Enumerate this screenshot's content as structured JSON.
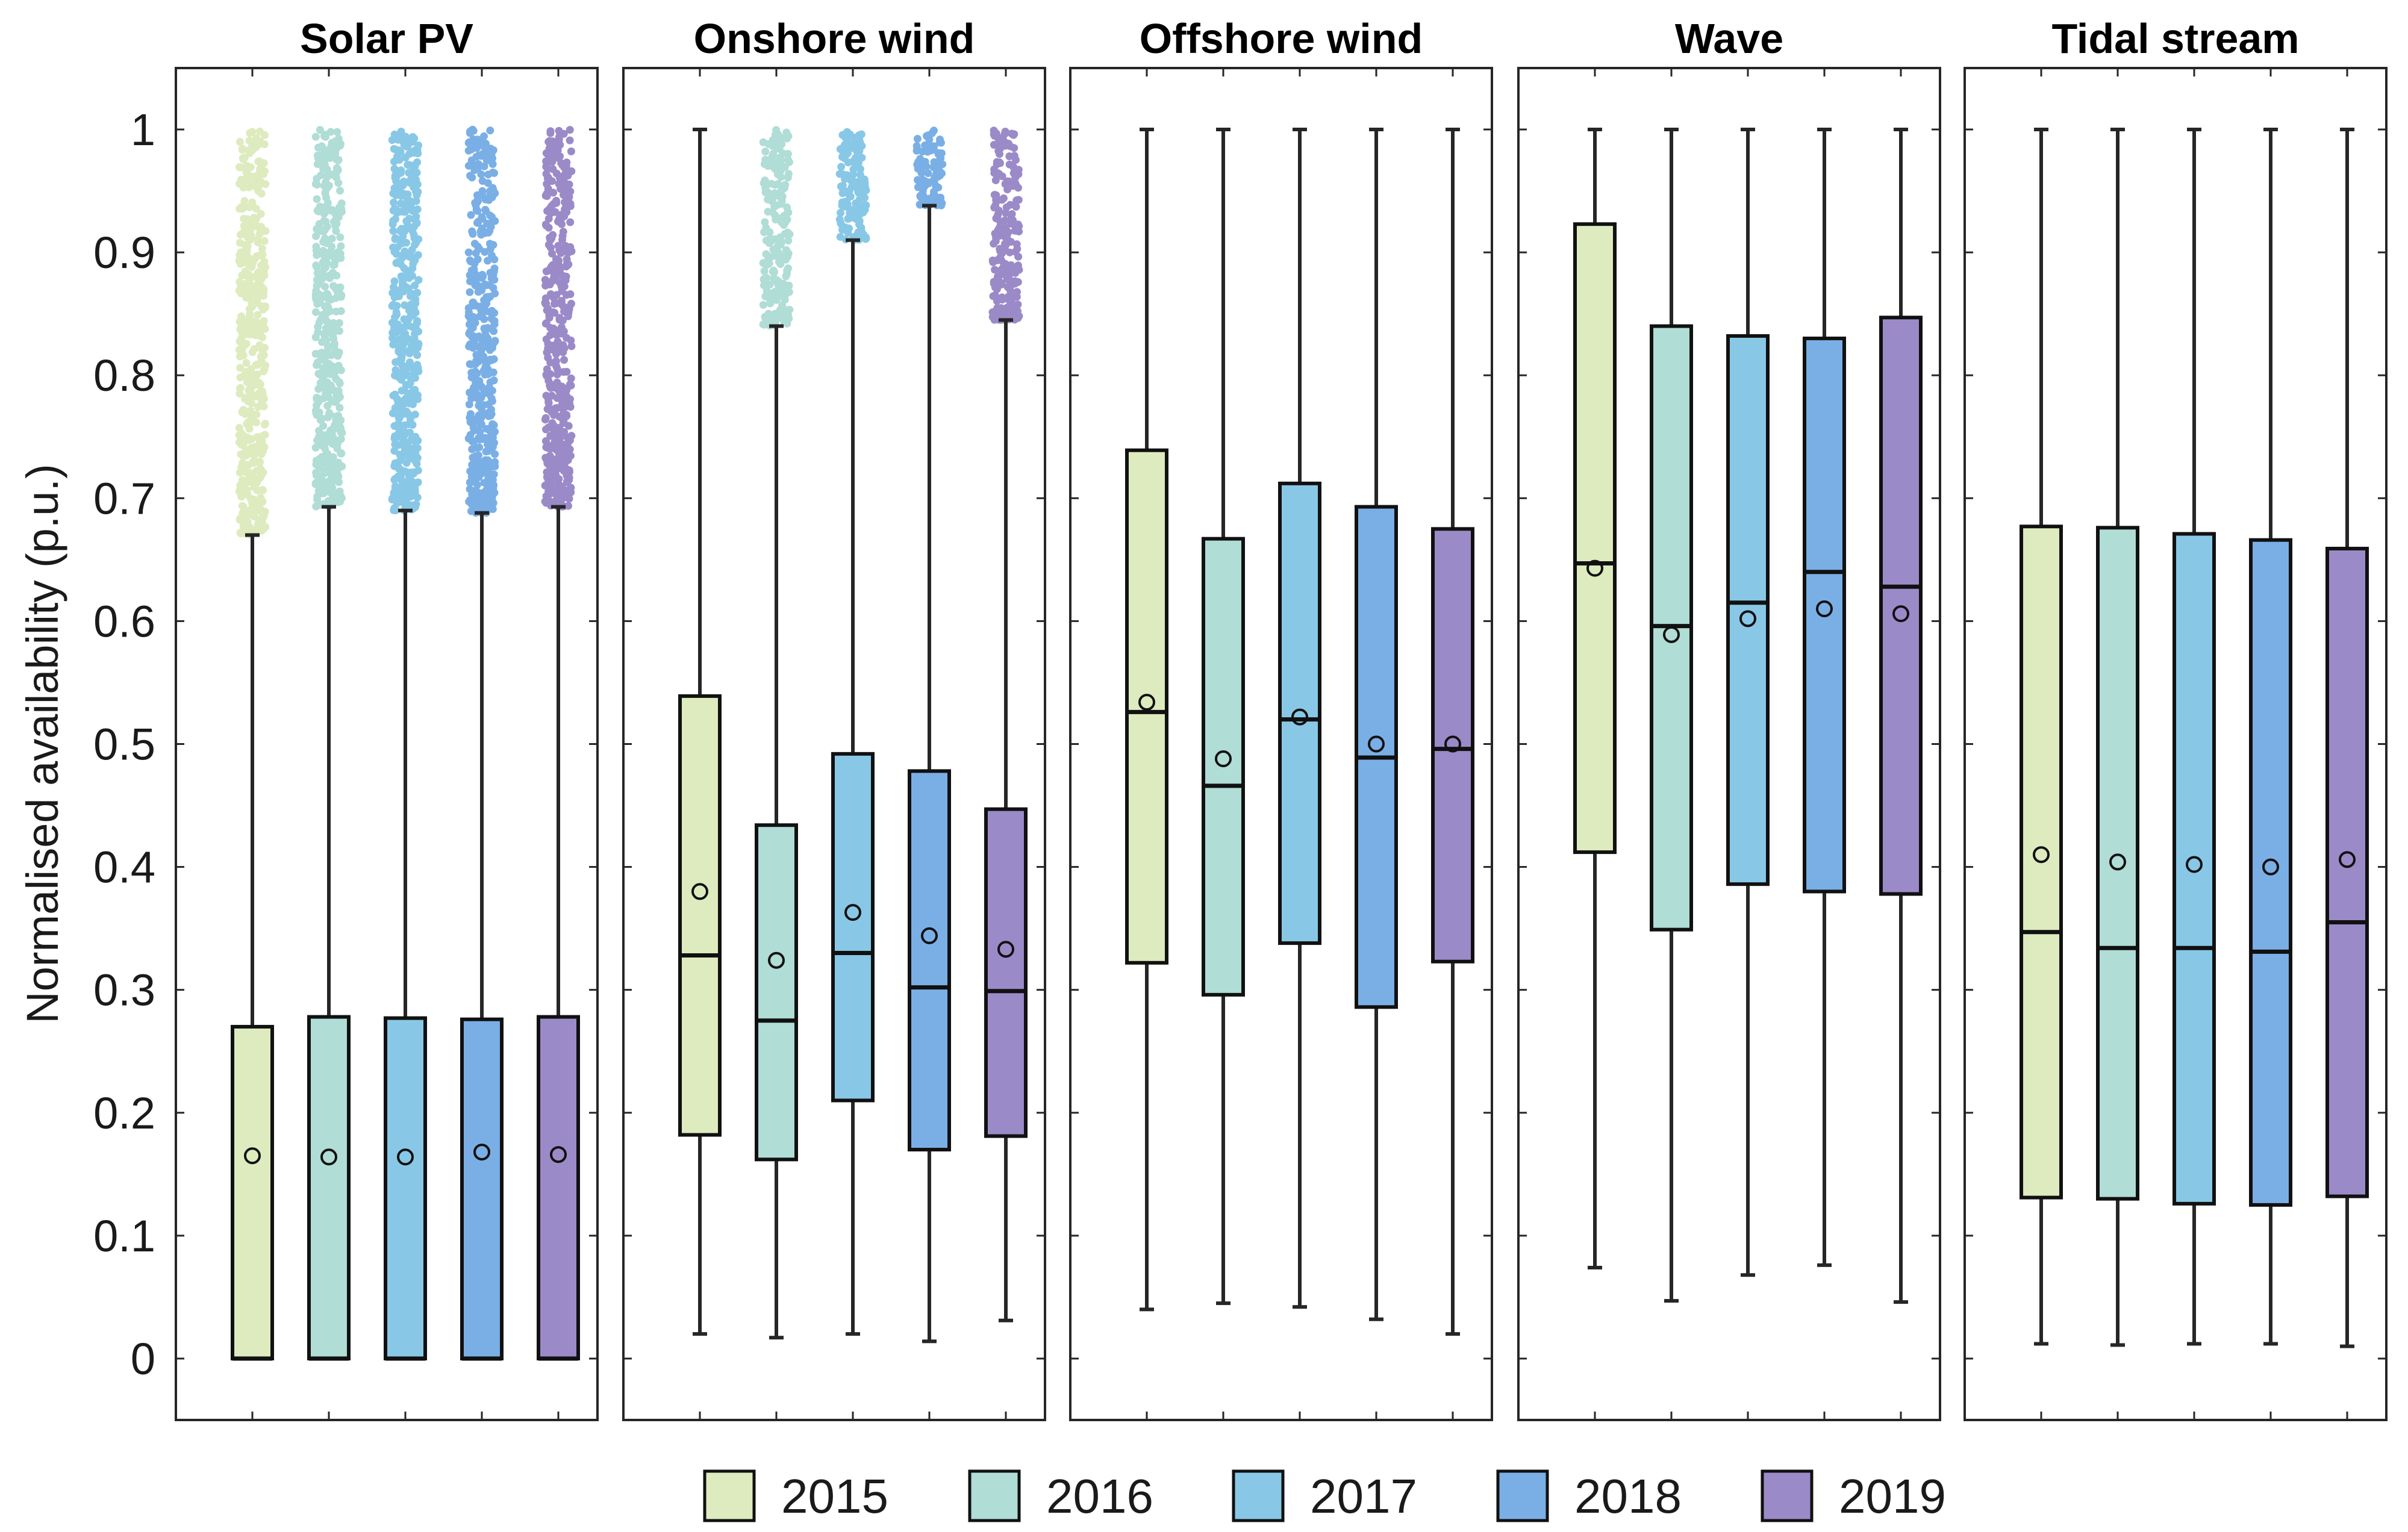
{
  "chart_data": {
    "type": "box",
    "ylabel": "Normalised availability (p.u.)",
    "ylim": [
      0,
      1.05
    ],
    "yticks": [
      0,
      0.1,
      0.2,
      0.3,
      0.4,
      0.5,
      0.6,
      0.7,
      0.8,
      0.9,
      1
    ],
    "ytick_labels": [
      "0",
      "0.1",
      "0.2",
      "0.3",
      "0.4",
      "0.5",
      "0.6",
      "0.7",
      "0.8",
      "0.9",
      "1"
    ],
    "legend": [
      {
        "label": "2015",
        "color": "#DDEBBF"
      },
      {
        "label": "2016",
        "color": "#B0DDD6"
      },
      {
        "label": "2017",
        "color": "#88C8E6"
      },
      {
        "label": "2018",
        "color": "#7AAFE6"
      },
      {
        "label": "2019",
        "color": "#9B8AC8"
      }
    ],
    "panels": [
      {
        "title": "Solar PV",
        "boxes": [
          {
            "year": "2015",
            "min": 0,
            "q1": 0,
            "median": 0,
            "q3": 0.27,
            "max": 0.67,
            "mean": 0.165,
            "outliers_from": 0.67,
            "outliers_to": 1.0
          },
          {
            "year": "2016",
            "min": 0,
            "q1": 0,
            "median": 0,
            "q3": 0.278,
            "max": 0.693,
            "mean": 0.164,
            "outliers_from": 0.693,
            "outliers_to": 1.0
          },
          {
            "year": "2017",
            "min": 0,
            "q1": 0,
            "median": 0,
            "q3": 0.277,
            "max": 0.69,
            "mean": 0.164,
            "outliers_from": 0.69,
            "outliers_to": 1.0
          },
          {
            "year": "2018",
            "min": 0,
            "q1": 0,
            "median": 0,
            "q3": 0.276,
            "max": 0.688,
            "mean": 0.168,
            "outliers_from": 0.688,
            "outliers_to": 1.0
          },
          {
            "year": "2019",
            "min": 0,
            "q1": 0,
            "median": 0,
            "q3": 0.278,
            "max": 0.693,
            "mean": 0.166,
            "outliers_from": 0.693,
            "outliers_to": 1.0
          }
        ]
      },
      {
        "title": "Onshore wind",
        "boxes": [
          {
            "year": "2015",
            "min": 0.02,
            "q1": 0.182,
            "median": 0.328,
            "q3": 0.539,
            "max": 1.0,
            "mean": 0.38
          },
          {
            "year": "2016",
            "min": 0.017,
            "q1": 0.162,
            "median": 0.275,
            "q3": 0.434,
            "max": 0.84,
            "mean": 0.324,
            "outliers_from": 0.84,
            "outliers_to": 1.0
          },
          {
            "year": "2017",
            "min": 0.02,
            "q1": 0.21,
            "median": 0.33,
            "q3": 0.492,
            "max": 0.91,
            "mean": 0.363,
            "outliers_from": 0.91,
            "outliers_to": 1.0
          },
          {
            "year": "2018",
            "min": 0.014,
            "q1": 0.17,
            "median": 0.302,
            "q3": 0.478,
            "max": 0.938,
            "mean": 0.344,
            "outliers_from": 0.938,
            "outliers_to": 1.0
          },
          {
            "year": "2019",
            "min": 0.031,
            "q1": 0.181,
            "median": 0.299,
            "q3": 0.447,
            "max": 0.845,
            "mean": 0.333,
            "outliers_from": 0.845,
            "outliers_to": 1.0
          }
        ]
      },
      {
        "title": "Offshore wind",
        "boxes": [
          {
            "year": "2015",
            "min": 0.04,
            "q1": 0.322,
            "median": 0.526,
            "q3": 0.739,
            "max": 1.0,
            "mean": 0.534
          },
          {
            "year": "2016",
            "min": 0.045,
            "q1": 0.296,
            "median": 0.466,
            "q3": 0.667,
            "max": 1.0,
            "mean": 0.488
          },
          {
            "year": "2017",
            "min": 0.042,
            "q1": 0.338,
            "median": 0.52,
            "q3": 0.712,
            "max": 1.0,
            "mean": 0.522
          },
          {
            "year": "2018",
            "min": 0.032,
            "q1": 0.286,
            "median": 0.489,
            "q3": 0.693,
            "max": 1.0,
            "mean": 0.5
          },
          {
            "year": "2019",
            "min": 0.02,
            "q1": 0.323,
            "median": 0.496,
            "q3": 0.675,
            "max": 1.0,
            "mean": 0.5
          }
        ]
      },
      {
        "title": "Wave",
        "boxes": [
          {
            "year": "2015",
            "min": 0.074,
            "q1": 0.412,
            "median": 0.647,
            "q3": 0.923,
            "max": 1.0,
            "mean": 0.643
          },
          {
            "year": "2016",
            "min": 0.047,
            "q1": 0.349,
            "median": 0.596,
            "q3": 0.84,
            "max": 1.0,
            "mean": 0.589
          },
          {
            "year": "2017",
            "min": 0.068,
            "q1": 0.386,
            "median": 0.615,
            "q3": 0.832,
            "max": 1.0,
            "mean": 0.602
          },
          {
            "year": "2018",
            "min": 0.076,
            "q1": 0.38,
            "median": 0.64,
            "q3": 0.83,
            "max": 1.0,
            "mean": 0.61
          },
          {
            "year": "2019",
            "min": 0.046,
            "q1": 0.378,
            "median": 0.628,
            "q3": 0.847,
            "max": 1.0,
            "mean": 0.606
          }
        ]
      },
      {
        "title": "Tidal stream",
        "boxes": [
          {
            "year": "2015",
            "min": 0.012,
            "q1": 0.131,
            "median": 0.347,
            "q3": 0.677,
            "max": 1.0,
            "mean": 0.41
          },
          {
            "year": "2016",
            "min": 0.011,
            "q1": 0.13,
            "median": 0.334,
            "q3": 0.676,
            "max": 1.0,
            "mean": 0.404
          },
          {
            "year": "2017",
            "min": 0.012,
            "q1": 0.126,
            "median": 0.334,
            "q3": 0.671,
            "max": 1.0,
            "mean": 0.402
          },
          {
            "year": "2018",
            "min": 0.012,
            "q1": 0.125,
            "median": 0.331,
            "q3": 0.666,
            "max": 1.0,
            "mean": 0.4
          },
          {
            "year": "2019",
            "min": 0.01,
            "q1": 0.132,
            "median": 0.355,
            "q3": 0.659,
            "max": 1.0,
            "mean": 0.406
          }
        ]
      }
    ]
  }
}
